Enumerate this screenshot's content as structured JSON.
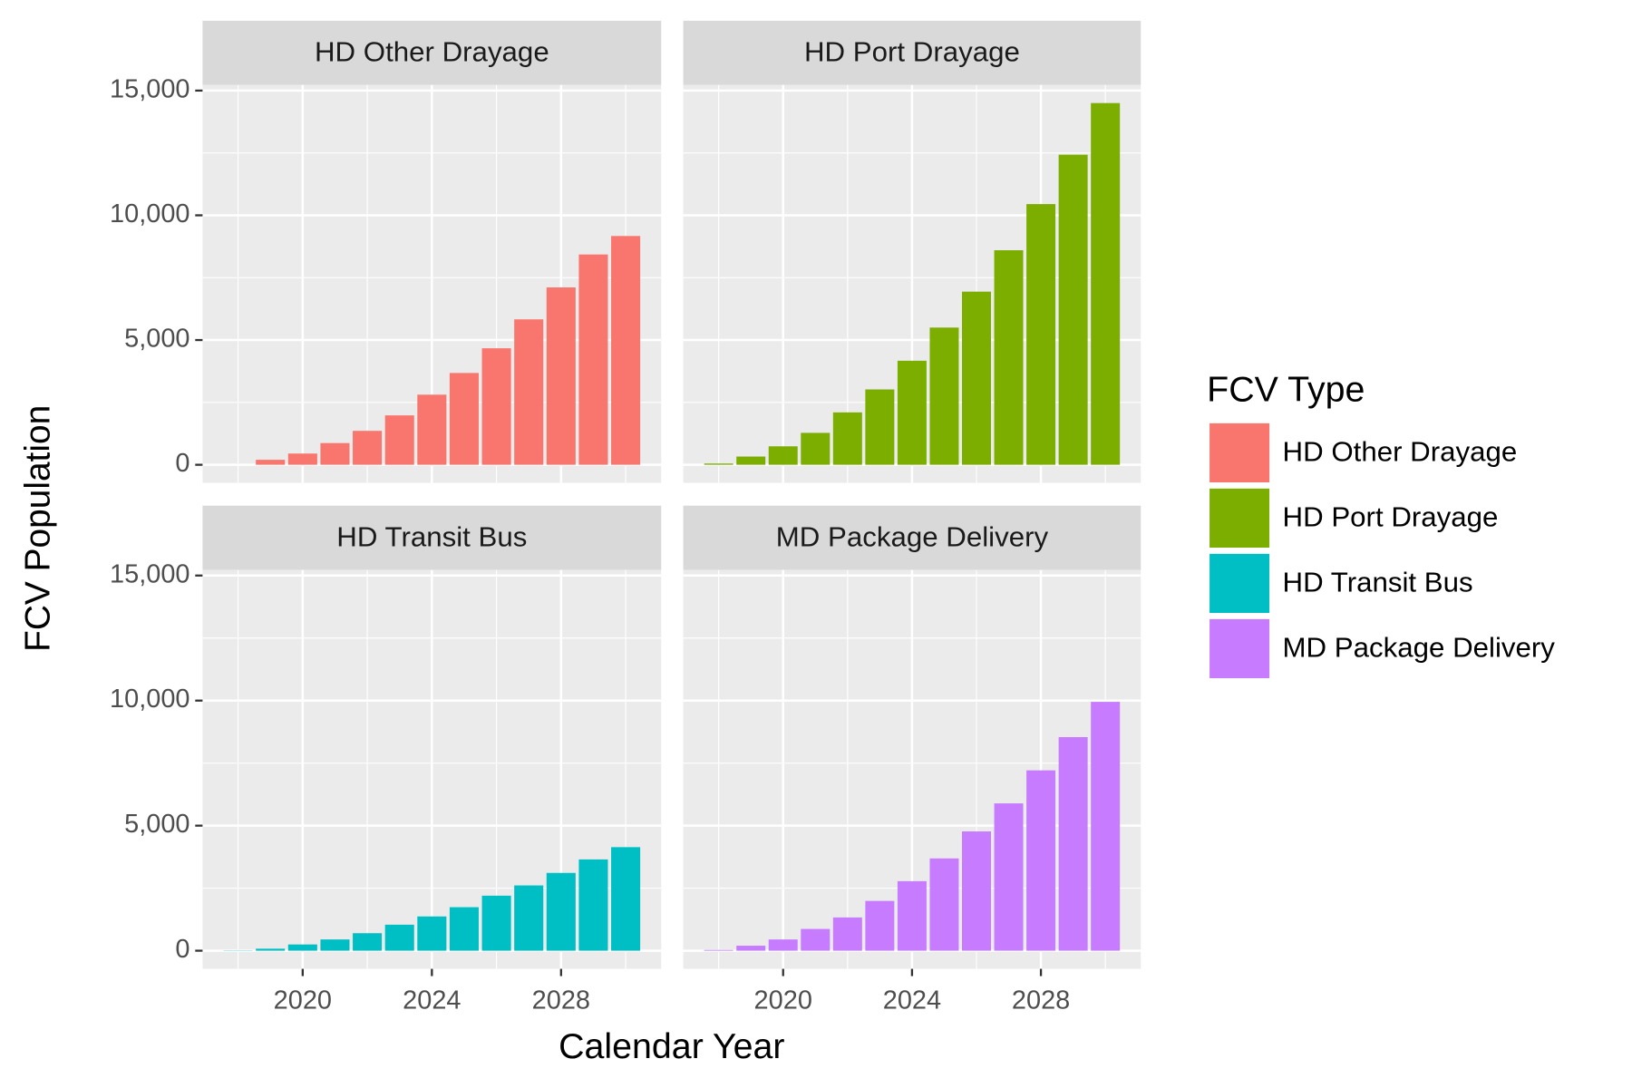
{
  "chart_data": {
    "type": "bar",
    "x_label": "Calendar Year",
    "y_label": "FCV Population",
    "legend_title": "FCV Type",
    "x": [
      2018,
      2019,
      2020,
      2021,
      2022,
      2023,
      2024,
      2025,
      2026,
      2027,
      2028,
      2029,
      2030
    ],
    "xlim": [
      2016.9,
      2031.1
    ],
    "xticks": [
      2020,
      2024,
      2028
    ],
    "ylim": [
      -725,
      15225
    ],
    "yticks": [
      0,
      {
        "value": 5000,
        "label": "5,000"
      },
      {
        "value": 10000,
        "label": "10,000"
      },
      {
        "value": 15000,
        "label": "15,000"
      }
    ],
    "grid": true,
    "legend": "right",
    "series": [
      {
        "name": "HD Other Drayage",
        "color": "#f8766d",
        "values": [
          0,
          200,
          450,
          870,
          1360,
          1980,
          2810,
          3680,
          4670,
          5830,
          7110,
          8430,
          9170
        ]
      },
      {
        "name": "HD Port Drayage",
        "color": "#7cae00",
        "values": [
          50,
          330,
          740,
          1280,
          2100,
          3020,
          4170,
          5500,
          6940,
          8600,
          10450,
          12430,
          14500
        ]
      },
      {
        "name": "HD Transit Bus",
        "color": "#00bfc4",
        "values": [
          10,
          80,
          250,
          450,
          700,
          1040,
          1370,
          1740,
          2200,
          2610,
          3110,
          3650,
          4140
        ]
      },
      {
        "name": "MD Package Delivery",
        "color": "#c77cff",
        "values": [
          30,
          200,
          450,
          870,
          1330,
          1990,
          2780,
          3690,
          4770,
          5890,
          7210,
          8540,
          9950
        ]
      }
    ]
  }
}
